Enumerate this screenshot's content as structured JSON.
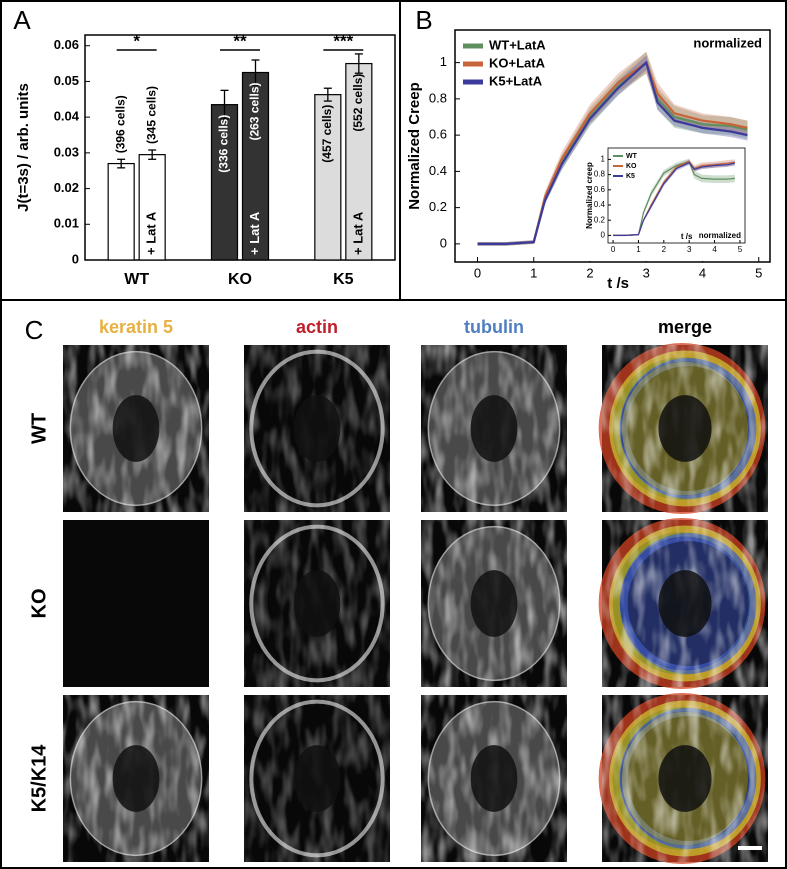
{
  "chart_data": [
    {
      "type": "bar",
      "label": "A",
      "y_label": "J(t=3s) / arb. units",
      "categories": [
        "WT",
        "KO",
        "K5"
      ],
      "significance": [
        "*",
        "**",
        "***"
      ],
      "colors": [
        "#ffffff",
        "#333333",
        "#dcdcdc"
      ],
      "ylim": [
        0,
        0.063
      ],
      "yticks": [
        0,
        0.01,
        0.02,
        0.03,
        0.04,
        0.05,
        0.06
      ],
      "series": [
        {
          "values": [
            0.027,
            0.0435,
            0.0463
          ],
          "errors": [
            0.0012,
            0.004,
            0.0018
          ],
          "cell_counts": [
            "(396 cells)",
            "(336 cells)",
            "(457 cells)"
          ]
        },
        {
          "name": "+ Lat A",
          "values": [
            0.0295,
            0.0525,
            0.055
          ],
          "errors": [
            0.0013,
            0.0035,
            0.0027
          ],
          "cell_counts": [
            "(345 cells)",
            "(263 cells)",
            "(552 cells)"
          ]
        }
      ]
    },
    {
      "type": "line",
      "label": "B",
      "y_label": "Normalized Creep",
      "x_label": "t /s",
      "annotation": "normalized",
      "xlim": [
        -0.4,
        5.2
      ],
      "ylim": [
        -0.1,
        1.18
      ],
      "xticks": [
        0,
        1,
        2,
        3,
        4,
        5
      ],
      "yticks": [
        0,
        0.2,
        0.4,
        0.6,
        0.8,
        1
      ],
      "x": [
        0,
        0.5,
        1,
        1.2,
        1.5,
        2,
        2.5,
        3,
        3.2,
        3.5,
        4,
        4.5,
        4.8
      ],
      "series": [
        {
          "name": "WT+LatA",
          "color": "#5f8f5f",
          "values": [
            0,
            0,
            0.01,
            0.25,
            0.45,
            0.7,
            0.87,
            1,
            0.8,
            0.7,
            0.66,
            0.65,
            0.63
          ],
          "errors": [
            0.01,
            0.01,
            0.01,
            0.03,
            0.04,
            0.05,
            0.05,
            0.06,
            0.06,
            0.06,
            0.05,
            0.05,
            0.05
          ]
        },
        {
          "name": "KO+LatA",
          "color": "#c8643a",
          "values": [
            0,
            0,
            0.01,
            0.26,
            0.47,
            0.72,
            0.89,
            1,
            0.83,
            0.72,
            0.68,
            0.66,
            0.64
          ],
          "errors": [
            0.01,
            0.01,
            0.01,
            0.03,
            0.04,
            0.05,
            0.05,
            0.06,
            0.06,
            0.05,
            0.04,
            0.04,
            0.04
          ]
        },
        {
          "name": "K5+LatA",
          "color": "#3b3b9c",
          "values": [
            0,
            0,
            0.01,
            0.24,
            0.44,
            0.69,
            0.86,
            1,
            0.78,
            0.68,
            0.64,
            0.62,
            0.6
          ],
          "errors": [
            0.01,
            0.01,
            0.01,
            0.02,
            0.03,
            0.03,
            0.04,
            0.04,
            0.04,
            0.03,
            0.03,
            0.03,
            0.03
          ]
        }
      ]
    },
    {
      "type": "line",
      "y_label": "Normalized creep",
      "x_label": "t /s",
      "annotation": "normalized",
      "xlim": [
        -0.2,
        5.2
      ],
      "ylim": [
        -0.1,
        1.15
      ],
      "xticks": [
        0,
        1,
        2,
        3,
        4,
        5
      ],
      "yticks": [
        0,
        0.2,
        0.4,
        0.6,
        0.8,
        1
      ],
      "x": [
        0,
        0.5,
        1,
        1.2,
        1.5,
        2,
        2.5,
        3,
        3.2,
        3.5,
        4,
        4.5,
        4.8
      ],
      "series": [
        {
          "name": "WT",
          "color": "#5f8f5f",
          "values": [
            0,
            0,
            0.01,
            0.3,
            0.55,
            0.82,
            0.92,
            0.97,
            0.8,
            0.75,
            0.74,
            0.74,
            0.75
          ],
          "errors": [
            0.01,
            0.01,
            0.01,
            0.03,
            0.04,
            0.04,
            0.04,
            0.04,
            0.05,
            0.05,
            0.05,
            0.05,
            0.05
          ]
        },
        {
          "name": "KO",
          "color": "#c8643a",
          "values": [
            0,
            0,
            0.01,
            0.2,
            0.4,
            0.7,
            0.9,
            0.97,
            0.88,
            0.92,
            0.93,
            0.95,
            0.96
          ],
          "errors": [
            0.01,
            0.01,
            0.01,
            0.02,
            0.03,
            0.03,
            0.03,
            0.03,
            0.04,
            0.04,
            0.04,
            0.04,
            0.04
          ]
        },
        {
          "name": "K5",
          "color": "#3b3b9c",
          "values": [
            0,
            0,
            0.01,
            0.2,
            0.38,
            0.68,
            0.88,
            0.96,
            0.87,
            0.9,
            0.92,
            0.93,
            0.95
          ],
          "errors": [
            0.01,
            0.01,
            0.01,
            0.02,
            0.03,
            0.03,
            0.03,
            0.03,
            0.03,
            0.03,
            0.03,
            0.03,
            0.03
          ]
        }
      ]
    }
  ],
  "panel_c": {
    "label": "C",
    "columns": [
      {
        "text": "keratin 5",
        "color": "#e8b040"
      },
      {
        "text": "actin",
        "color": "#c01e2a"
      },
      {
        "text": "tubulin",
        "color": "#4f7fc0"
      },
      {
        "text": "merge",
        "color": "#000000"
      }
    ],
    "rows": [
      "WT",
      "KO",
      "K5/K14"
    ]
  }
}
